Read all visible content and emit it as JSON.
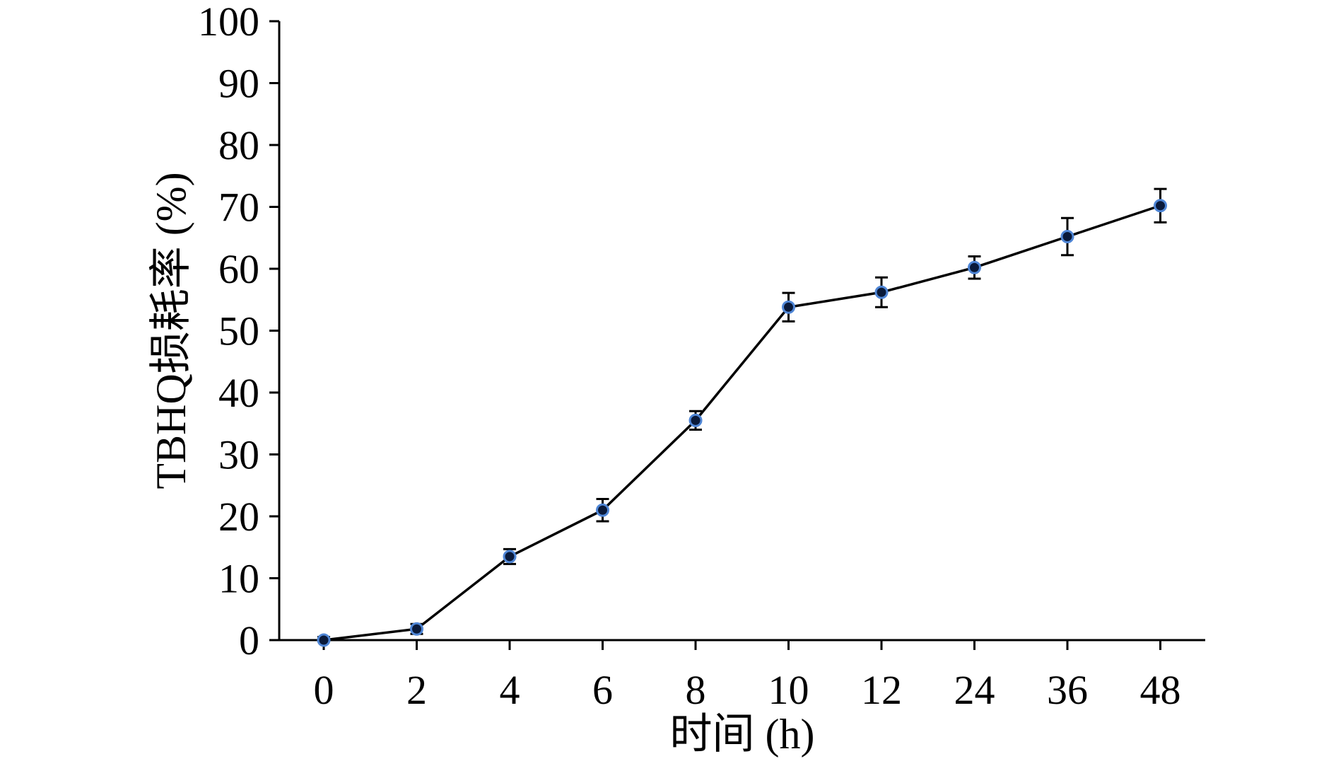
{
  "chart_data": {
    "type": "line",
    "title": "",
    "xlabel": "时间 (h)",
    "ylabel": "TBHQ损耗率 (%)",
    "categories": [
      "0",
      "2",
      "4",
      "6",
      "8",
      "10",
      "12",
      "24",
      "36",
      "48"
    ],
    "series": [
      {
        "values": [
          0,
          1.8,
          13.5,
          21.0,
          35.5,
          53.8,
          56.2,
          60.2,
          65.2,
          70.2
        ],
        "errors": [
          0.5,
          0.8,
          1.2,
          1.8,
          1.5,
          2.3,
          2.4,
          1.8,
          3.0,
          2.7
        ]
      }
    ],
    "ylim": [
      0,
      100
    ],
    "yticks": [
      "0",
      "10",
      "20",
      "30",
      "40",
      "50",
      "60",
      "70",
      "80",
      "90",
      "100"
    ],
    "grid": false,
    "colors": {
      "line": "#000000",
      "marker_fill": "#0a1a3a",
      "marker_edge": "#4f86d6"
    }
  }
}
